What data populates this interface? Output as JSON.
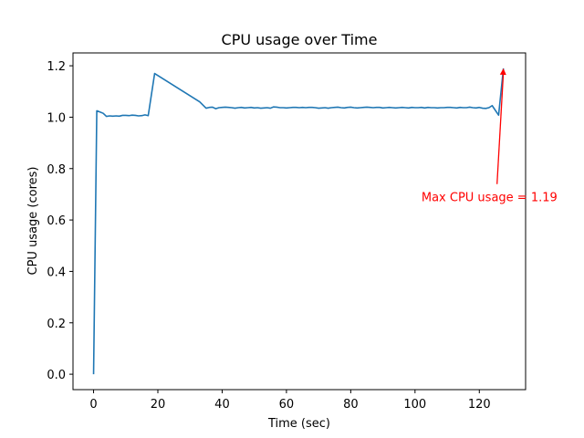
{
  "chart_data": {
    "type": "line",
    "title": "CPU usage over Time",
    "xlabel": "Time (sec)",
    "ylabel": "CPU usage (cores)",
    "xlim": [
      -6.4,
      134.4
    ],
    "ylim": [
      -0.06,
      1.25
    ],
    "xticks": [
      0,
      20,
      40,
      60,
      80,
      100,
      120
    ],
    "yticks": [
      0.0,
      0.2,
      0.4,
      0.6,
      0.8,
      1.0,
      1.2
    ],
    "xtick_labels": [
      "0",
      "20",
      "40",
      "60",
      "80",
      "100",
      "120"
    ],
    "ytick_labels": [
      "0.0",
      "0.2",
      "0.4",
      "0.6",
      "0.8",
      "1.0",
      "1.2"
    ],
    "grid": false,
    "line_color": "#1f77b4",
    "series": [
      {
        "x": [
          0,
          1,
          2,
          3,
          4,
          5,
          6,
          7,
          8,
          9,
          10,
          11,
          12,
          13,
          14,
          15,
          16,
          17,
          19,
          33,
          35,
          36,
          37,
          38,
          39,
          40,
          41,
          42,
          43,
          44,
          45,
          46,
          47,
          48,
          49,
          50,
          51,
          52,
          53,
          54,
          55,
          56,
          57,
          58,
          59,
          60,
          61,
          62,
          63,
          64,
          65,
          66,
          67,
          68,
          69,
          70,
          71,
          72,
          73,
          74,
          75,
          76,
          77,
          78,
          79,
          80,
          81,
          82,
          83,
          84,
          85,
          86,
          87,
          88,
          89,
          90,
          91,
          92,
          93,
          94,
          95,
          96,
          97,
          98,
          99,
          100,
          101,
          102,
          103,
          104,
          105,
          106,
          107,
          108,
          109,
          110,
          111,
          112,
          113,
          114,
          115,
          116,
          117,
          118,
          119,
          120,
          121,
          122,
          123,
          124,
          126,
          127.5
        ],
        "y": [
          0.0,
          1.025,
          1.02,
          1.015,
          1.003,
          1.005,
          1.004,
          1.005,
          1.004,
          1.007,
          1.007,
          1.006,
          1.008,
          1.007,
          1.005,
          1.006,
          1.009,
          1.006,
          1.17,
          1.06,
          1.035,
          1.038,
          1.039,
          1.033,
          1.037,
          1.038,
          1.039,
          1.038,
          1.037,
          1.035,
          1.037,
          1.038,
          1.036,
          1.037,
          1.038,
          1.036,
          1.037,
          1.035,
          1.036,
          1.037,
          1.035,
          1.04,
          1.039,
          1.037,
          1.037,
          1.036,
          1.037,
          1.038,
          1.038,
          1.037,
          1.038,
          1.037,
          1.038,
          1.038,
          1.037,
          1.035,
          1.036,
          1.037,
          1.035,
          1.037,
          1.038,
          1.039,
          1.037,
          1.036,
          1.038,
          1.039,
          1.037,
          1.036,
          1.037,
          1.038,
          1.039,
          1.038,
          1.037,
          1.038,
          1.038,
          1.036,
          1.037,
          1.038,
          1.037,
          1.036,
          1.037,
          1.038,
          1.037,
          1.036,
          1.038,
          1.037,
          1.037,
          1.038,
          1.036,
          1.038,
          1.037,
          1.037,
          1.036,
          1.037,
          1.037,
          1.038,
          1.038,
          1.037,
          1.036,
          1.038,
          1.037,
          1.037,
          1.039,
          1.037,
          1.036,
          1.038,
          1.035,
          1.034,
          1.037,
          1.045,
          1.008,
          1.19
        ]
      }
    ],
    "annotation": {
      "text": "Max CPU usage = 1.19",
      "color": "#ff0000",
      "xy": [
        127.5,
        1.19
      ],
      "xytext": [
        102,
        0.69
      ]
    }
  }
}
